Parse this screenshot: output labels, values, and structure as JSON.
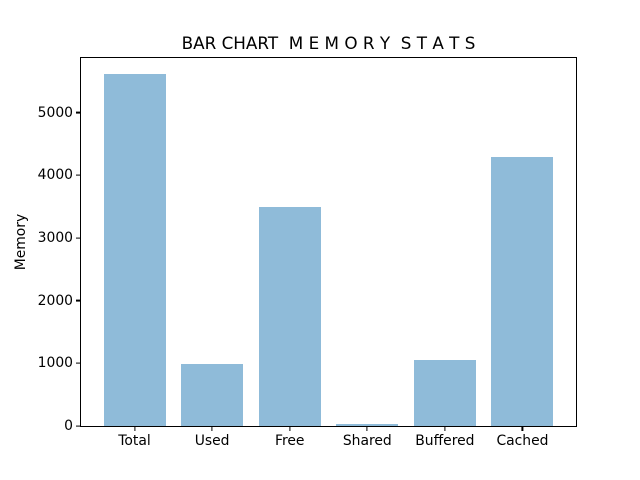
{
  "figure": {
    "background": "#ffffff"
  },
  "chart_data": {
    "type": "bar",
    "title": "BAR CHART  M E M O R Y  S T A T S",
    "xlabel": "",
    "ylabel": "Memory",
    "categories": [
      "Total",
      "Used",
      "Free",
      "Shared",
      "Buffered",
      "Cached"
    ],
    "values": [
      5610,
      990,
      3500,
      30,
      1050,
      4290
    ],
    "yticks": [
      0,
      1000,
      2000,
      3000,
      4000,
      5000
    ],
    "ylim": [
      0,
      5870
    ],
    "xlim": [
      -0.69,
      5.69
    ],
    "bar_width": 0.8,
    "bar_color": "#8FBBD9",
    "spine_color": "#000000",
    "text_color": "#000000",
    "grid": false,
    "legend_position": "none"
  }
}
